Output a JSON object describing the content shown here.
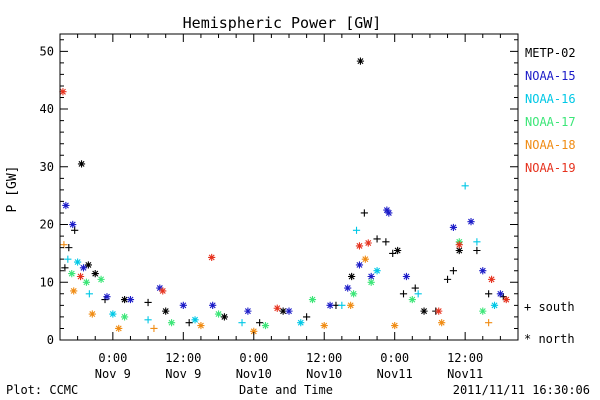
{
  "chart_data": {
    "type": "scatter",
    "title": "Hemispheric Power [GW]",
    "ylabel": "P [GW]",
    "xlabel": "Date and Time",
    "ylim": [
      0,
      53
    ],
    "xlim": [
      "2011-11-08 15:00",
      "2011-11-11 21:00"
    ],
    "y_ticks": [
      0,
      10,
      20,
      30,
      40,
      50
    ],
    "x_ticks": [
      {
        "t": "2011-11-09 00:00",
        "time": "0:00",
        "date": "Nov 9"
      },
      {
        "t": "2011-11-09 12:00",
        "time": "12:00",
        "date": "Nov 9"
      },
      {
        "t": "2011-11-10 00:00",
        "time": "0:00",
        "date": "Nov10"
      },
      {
        "t": "2011-11-10 12:00",
        "time": "12:00",
        "date": "Nov10"
      },
      {
        "t": "2011-11-11 00:00",
        "time": "0:00",
        "date": "Nov11"
      },
      {
        "t": "2011-11-11 12:00",
        "time": "12:00",
        "date": "Nov11"
      }
    ],
    "legend_position": "right",
    "markers": {
      "south": "+",
      "north": "*"
    },
    "marker_legend": {
      "south": "+ south",
      "north": "* north"
    },
    "series": [
      {
        "name": "METP-02",
        "color": "#000000",
        "points": [
          {
            "t": "2011-11-08 15:50",
            "y": 12.5,
            "m": "+"
          },
          {
            "t": "2011-11-08 16:30",
            "y": 16.0,
            "m": "+"
          },
          {
            "t": "2011-11-08 17:30",
            "y": 19.0,
            "m": "+"
          },
          {
            "t": "2011-11-08 18:40",
            "y": 30.5,
            "m": "*"
          },
          {
            "t": "2011-11-08 19:50",
            "y": 13.0,
            "m": "*"
          },
          {
            "t": "2011-11-08 21:00",
            "y": 11.5,
            "m": "*"
          },
          {
            "t": "2011-11-08 22:40",
            "y": 7.0,
            "m": "+"
          },
          {
            "t": "2011-11-09 02:00",
            "y": 7.0,
            "m": "*"
          },
          {
            "t": "2011-11-09 06:00",
            "y": 6.5,
            "m": "+"
          },
          {
            "t": "2011-11-09 09:00",
            "y": 5.0,
            "m": "*"
          },
          {
            "t": "2011-11-09 13:00",
            "y": 3.0,
            "m": "+"
          },
          {
            "t": "2011-11-09 19:00",
            "y": 4.0,
            "m": "*"
          },
          {
            "t": "2011-11-10 01:00",
            "y": 3.0,
            "m": "+"
          },
          {
            "t": "2011-11-10 05:00",
            "y": 5.0,
            "m": "*"
          },
          {
            "t": "2011-11-10 09:00",
            "y": 4.0,
            "m": "+"
          },
          {
            "t": "2011-11-10 14:00",
            "y": 6.0,
            "m": "+"
          },
          {
            "t": "2011-11-10 16:40",
            "y": 11.0,
            "m": "*"
          },
          {
            "t": "2011-11-10 18:10",
            "y": 48.3,
            "m": "*"
          },
          {
            "t": "2011-11-10 18:50",
            "y": 22.0,
            "m": "+"
          },
          {
            "t": "2011-11-10 21:00",
            "y": 17.5,
            "m": "+"
          },
          {
            "t": "2011-11-10 22:30",
            "y": 17.0,
            "m": "+"
          },
          {
            "t": "2011-11-10 23:40",
            "y": 15.0,
            "m": "+"
          },
          {
            "t": "2011-11-11 00:30",
            "y": 15.5,
            "m": "*"
          },
          {
            "t": "2011-11-11 01:30",
            "y": 8.0,
            "m": "+"
          },
          {
            "t": "2011-11-11 03:30",
            "y": 9.0,
            "m": "+"
          },
          {
            "t": "2011-11-11 05:00",
            "y": 5.0,
            "m": "*"
          },
          {
            "t": "2011-11-11 07:00",
            "y": 5.0,
            "m": "+"
          },
          {
            "t": "2011-11-11 09:00",
            "y": 10.5,
            "m": "+"
          },
          {
            "t": "2011-11-11 10:00",
            "y": 12.0,
            "m": "+"
          },
          {
            "t": "2011-11-11 11:00",
            "y": 15.5,
            "m": "*"
          },
          {
            "t": "2011-11-11 14:00",
            "y": 15.5,
            "m": "+"
          },
          {
            "t": "2011-11-11 16:00",
            "y": 8.0,
            "m": "+"
          },
          {
            "t": "2011-11-11 18:30",
            "y": 7.5,
            "m": "+"
          }
        ]
      },
      {
        "name": "NOAA-15",
        "color": "#1c1cc8",
        "points": [
          {
            "t": "2011-11-08 16:00",
            "y": 23.3,
            "m": "*"
          },
          {
            "t": "2011-11-08 17:10",
            "y": 20.0,
            "m": "*"
          },
          {
            "t": "2011-11-08 19:00",
            "y": 12.5,
            "m": "*"
          },
          {
            "t": "2011-11-08 23:00",
            "y": 7.5,
            "m": "*"
          },
          {
            "t": "2011-11-09 03:00",
            "y": 7.0,
            "m": "*"
          },
          {
            "t": "2011-11-09 08:00",
            "y": 9.0,
            "m": "*"
          },
          {
            "t": "2011-11-09 12:00",
            "y": 6.0,
            "m": "*"
          },
          {
            "t": "2011-11-09 17:00",
            "y": 6.0,
            "m": "*"
          },
          {
            "t": "2011-11-09 23:00",
            "y": 5.0,
            "m": "*"
          },
          {
            "t": "2011-11-10 06:00",
            "y": 5.0,
            "m": "*"
          },
          {
            "t": "2011-11-10 13:00",
            "y": 6.0,
            "m": "*"
          },
          {
            "t": "2011-11-10 16:00",
            "y": 9.0,
            "m": "*"
          },
          {
            "t": "2011-11-10 18:00",
            "y": 13.0,
            "m": "*"
          },
          {
            "t": "2011-11-10 20:00",
            "y": 11.0,
            "m": "*"
          },
          {
            "t": "2011-11-10 22:40",
            "y": 22.5,
            "m": "*"
          },
          {
            "t": "2011-11-10 23:00",
            "y": 22.0,
            "m": "*"
          },
          {
            "t": "2011-11-11 02:00",
            "y": 11.0,
            "m": "*"
          },
          {
            "t": "2011-11-11 10:00",
            "y": 19.5,
            "m": "*"
          },
          {
            "t": "2011-11-11 13:00",
            "y": 20.5,
            "m": "*"
          },
          {
            "t": "2011-11-11 15:00",
            "y": 12.0,
            "m": "*"
          },
          {
            "t": "2011-11-11 18:00",
            "y": 8.0,
            "m": "*"
          }
        ]
      },
      {
        "name": "NOAA-16",
        "color": "#00c8e6",
        "points": [
          {
            "t": "2011-11-08 16:20",
            "y": 14.0,
            "m": "+"
          },
          {
            "t": "2011-11-08 18:00",
            "y": 13.5,
            "m": "*"
          },
          {
            "t": "2011-11-08 20:00",
            "y": 8.0,
            "m": "+"
          },
          {
            "t": "2011-11-09 00:00",
            "y": 4.5,
            "m": "*"
          },
          {
            "t": "2011-11-09 06:00",
            "y": 3.5,
            "m": "+"
          },
          {
            "t": "2011-11-09 14:00",
            "y": 3.5,
            "m": "*"
          },
          {
            "t": "2011-11-09 22:00",
            "y": 3.0,
            "m": "+"
          },
          {
            "t": "2011-11-10 08:00",
            "y": 3.0,
            "m": "*"
          },
          {
            "t": "2011-11-10 15:00",
            "y": 6.0,
            "m": "+"
          },
          {
            "t": "2011-11-10 17:30",
            "y": 19.0,
            "m": "+"
          },
          {
            "t": "2011-11-10 21:00",
            "y": 12.0,
            "m": "*"
          },
          {
            "t": "2011-11-11 04:00",
            "y": 8.0,
            "m": "+"
          },
          {
            "t": "2011-11-11 12:00",
            "y": 26.7,
            "m": "+"
          },
          {
            "t": "2011-11-11 14:00",
            "y": 17.0,
            "m": "+"
          },
          {
            "t": "2011-11-11 17:00",
            "y": 6.0,
            "m": "*"
          }
        ]
      },
      {
        "name": "NOAA-17",
        "color": "#3ce678",
        "points": [
          {
            "t": "2011-11-08 17:00",
            "y": 11.5,
            "m": "*"
          },
          {
            "t": "2011-11-08 19:30",
            "y": 10.0,
            "m": "*"
          },
          {
            "t": "2011-11-08 22:00",
            "y": 10.5,
            "m": "*"
          },
          {
            "t": "2011-11-09 02:00",
            "y": 4.0,
            "m": "*"
          },
          {
            "t": "2011-11-09 10:00",
            "y": 3.0,
            "m": "*"
          },
          {
            "t": "2011-11-09 18:00",
            "y": 4.5,
            "m": "*"
          },
          {
            "t": "2011-11-10 02:00",
            "y": 2.5,
            "m": "*"
          },
          {
            "t": "2011-11-10 10:00",
            "y": 7.0,
            "m": "*"
          },
          {
            "t": "2011-11-10 17:00",
            "y": 8.0,
            "m": "*"
          },
          {
            "t": "2011-11-10 20:00",
            "y": 10.0,
            "m": "*"
          },
          {
            "t": "2011-11-11 03:00",
            "y": 7.0,
            "m": "*"
          },
          {
            "t": "2011-11-11 11:00",
            "y": 17.0,
            "m": "*"
          },
          {
            "t": "2011-11-11 15:00",
            "y": 5.0,
            "m": "*"
          }
        ]
      },
      {
        "name": "NOAA-18",
        "color": "#f08c14",
        "points": [
          {
            "t": "2011-11-08 15:40",
            "y": 16.5,
            "m": "+"
          },
          {
            "t": "2011-11-08 17:20",
            "y": 8.5,
            "m": "*"
          },
          {
            "t": "2011-11-08 20:30",
            "y": 4.5,
            "m": "*"
          },
          {
            "t": "2011-11-09 01:00",
            "y": 2.0,
            "m": "*"
          },
          {
            "t": "2011-11-09 07:00",
            "y": 2.0,
            "m": "+"
          },
          {
            "t": "2011-11-09 15:00",
            "y": 2.5,
            "m": "*"
          },
          {
            "t": "2011-11-10 00:00",
            "y": 1.5,
            "m": "*"
          },
          {
            "t": "2011-11-10 12:00",
            "y": 2.5,
            "m": "*"
          },
          {
            "t": "2011-11-10 16:30",
            "y": 6.0,
            "m": "*"
          },
          {
            "t": "2011-11-10 19:00",
            "y": 14.0,
            "m": "*"
          },
          {
            "t": "2011-11-11 00:00",
            "y": 2.5,
            "m": "*"
          },
          {
            "t": "2011-11-11 08:00",
            "y": 3.0,
            "m": "*"
          },
          {
            "t": "2011-11-11 16:00",
            "y": 3.0,
            "m": "+"
          }
        ]
      },
      {
        "name": "NOAA-19",
        "color": "#e6321e",
        "points": [
          {
            "t": "2011-11-08 15:30",
            "y": 43.0,
            "m": "*"
          },
          {
            "t": "2011-11-08 18:30",
            "y": 11.0,
            "m": "*"
          },
          {
            "t": "2011-11-09 08:30",
            "y": 8.5,
            "m": "*"
          },
          {
            "t": "2011-11-09 16:50",
            "y": 14.3,
            "m": "*"
          },
          {
            "t": "2011-11-10 04:00",
            "y": 5.5,
            "m": "*"
          },
          {
            "t": "2011-11-10 18:00",
            "y": 16.3,
            "m": "*"
          },
          {
            "t": "2011-11-10 19:30",
            "y": 16.8,
            "m": "*"
          },
          {
            "t": "2011-11-11 07:30",
            "y": 5.0,
            "m": "*"
          },
          {
            "t": "2011-11-11 11:00",
            "y": 16.5,
            "m": "*"
          },
          {
            "t": "2011-11-11 16:30",
            "y": 10.5,
            "m": "*"
          },
          {
            "t": "2011-11-11 19:00",
            "y": 7.0,
            "m": "*"
          }
        ]
      }
    ]
  },
  "footer": {
    "plot_credit": "Plot: CCMC",
    "timestamp": "2011/11/11 16:30:06"
  }
}
